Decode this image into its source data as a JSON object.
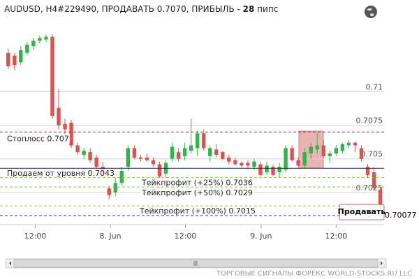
{
  "header": {
    "title": "AUDUSD, H4#229490, ПРОДАВАТЬ 0.7070, ПРИБЫЛЬ - ",
    "profit": "28",
    "unit": " пипс"
  },
  "footer": "ТОРГОВЫЕ СИГНАЛЫ ФОРЕКС WORLD-STOCKS.RU LLC",
  "chart_data": {
    "type": "candlestick",
    "up_color": "#33b34a",
    "down_color": "#d9534f",
    "x": [
      0,
      1,
      2,
      3,
      4,
      5,
      6,
      7,
      8,
      9,
      10,
      11,
      12,
      13,
      14,
      15,
      16,
      17,
      18,
      19,
      20,
      21,
      22,
      23,
      24,
      25,
      26,
      27,
      28,
      29,
      30,
      31,
      32,
      33,
      34,
      35,
      36,
      37,
      38,
      39,
      40,
      41,
      42,
      43,
      44,
      45,
      46,
      47,
      48,
      49,
      50,
      51,
      52,
      53,
      54,
      55,
      56,
      57,
      58,
      59
    ],
    "open": [
      0.7129,
      0.7127,
      0.7122,
      0.7129,
      0.7134,
      0.7138,
      0.7139,
      0.7141,
      0.7088,
      0.7076,
      0.7077,
      0.706,
      0.7053,
      0.7055,
      0.7051,
      0.7044,
      0.7028,
      0.7025,
      0.7032,
      0.7044,
      0.7058,
      0.7051,
      0.7051,
      0.7049,
      0.7046,
      0.7039,
      0.705,
      0.7055,
      0.7052,
      0.7056,
      0.7058,
      0.7069,
      0.7052,
      0.7057,
      0.7055,
      0.7051,
      0.7049,
      0.7047,
      0.7047,
      0.7044,
      0.7046,
      0.704,
      0.7044,
      0.704,
      0.7042,
      0.7058,
      0.7049,
      0.7045,
      0.7054,
      0.7057,
      0.706,
      0.7052,
      0.7054,
      0.7056,
      0.706,
      0.7062,
      0.7058,
      0.7044,
      0.704,
      0.7027
    ],
    "high": [
      0.7132,
      0.7129,
      0.7134,
      0.7137,
      0.714,
      0.7142,
      0.7143,
      0.7143,
      0.7102,
      0.708,
      0.7079,
      0.7062,
      0.7058,
      0.7058,
      0.7053,
      0.7048,
      0.703,
      0.7036,
      0.7044,
      0.706,
      0.706,
      0.7053,
      0.7054,
      0.7051,
      0.7048,
      0.7049,
      0.7062,
      0.7058,
      0.7062,
      0.708,
      0.7071,
      0.7072,
      0.706,
      0.7061,
      0.7056,
      0.7053,
      0.7051,
      0.7048,
      0.7049,
      0.705,
      0.7048,
      0.7048,
      0.7046,
      0.7047,
      0.706,
      0.706,
      0.7051,
      0.7058,
      0.7062,
      0.7069,
      0.7064,
      0.7056,
      0.706,
      0.7062,
      0.7064,
      0.7063,
      0.706,
      0.7046,
      0.7044,
      0.7029
    ],
    "low": [
      0.7117,
      0.7116,
      0.712,
      0.7127,
      0.7131,
      0.7136,
      0.7137,
      0.708,
      0.7072,
      0.7065,
      0.7058,
      0.7053,
      0.705,
      0.7047,
      0.7042,
      0.7036,
      0.702,
      0.7022,
      0.703,
      0.7041,
      0.705,
      0.7048,
      0.7048,
      0.7044,
      0.7036,
      0.7036,
      0.7048,
      0.7048,
      0.7049,
      0.7054,
      0.7052,
      0.7056,
      0.7048,
      0.7051,
      0.7049,
      0.7046,
      0.7045,
      0.7044,
      0.7043,
      0.7042,
      0.7037,
      0.7038,
      0.7037,
      0.7036,
      0.704,
      0.7048,
      0.7044,
      0.7043,
      0.705,
      0.7054,
      0.7051,
      0.7047,
      0.7052,
      0.7054,
      0.7058,
      0.7055,
      0.7048,
      0.7036,
      0.7026,
      0.7005
    ],
    "close": [
      0.7119,
      0.712,
      0.7131,
      0.7135,
      0.7138,
      0.714,
      0.7141,
      0.7082,
      0.7075,
      0.7072,
      0.706,
      0.7055,
      0.7056,
      0.7049,
      0.7044,
      0.7037,
      0.7023,
      0.7032,
      0.7041,
      0.7058,
      0.7051,
      0.705,
      0.7049,
      0.7046,
      0.7037,
      0.7047,
      0.7059,
      0.705,
      0.7058,
      0.706,
      0.7069,
      0.7058,
      0.7058,
      0.7053,
      0.705,
      0.7048,
      0.7046,
      0.7045,
      0.7045,
      0.7048,
      0.7038,
      0.7045,
      0.7038,
      0.7044,
      0.7058,
      0.7049,
      0.7045,
      0.7055,
      0.7059,
      0.706,
      0.7052,
      0.7054,
      0.7058,
      0.7061,
      0.7062,
      0.706,
      0.705,
      0.7038,
      0.7028,
      0.7012
    ],
    "xlim": [
      -1.3,
      59.6
    ],
    "ylim": [
      0.7001,
      0.7158
    ],
    "xticks": [
      {
        "value": 4.3,
        "label": "12:00"
      },
      {
        "value": 16.2,
        "label": "8. Jun"
      },
      {
        "value": 28.1,
        "label": "12:00"
      },
      {
        "value": 40.1,
        "label": "9. Jun"
      },
      {
        "value": 52.0,
        "label": "12:00"
      }
    ],
    "yticks": [
      0.7025,
      0.705,
      0.7075,
      0.71
    ],
    "levels": [
      {
        "value": 0.707,
        "label": "Стоплосс 0.707",
        "color": "#cc2222",
        "dashed": true
      },
      {
        "value": 0.7043,
        "label": "Продаем от уровня 0.7043",
        "color": "#1a1a80",
        "dashed": false
      },
      {
        "value": 0.7036,
        "label": "Тейкпрофит (+25%) 0.7036",
        "color": "#8cc63f",
        "dashed": true
      },
      {
        "value": 0.7029,
        "label": "Тейкпрофит (+50%) 0.7029",
        "color": "#8cc63f",
        "dashed": true
      },
      {
        "value": 0.7015,
        "label": "Тейкпрофит (+100%) 0.7015",
        "color": "#8cc63f",
        "dashed": true
      }
    ],
    "current_price": {
      "value": 0.70077,
      "label": "0.70077",
      "color": "#2233aa"
    },
    "signal_label": "Продавать"
  }
}
